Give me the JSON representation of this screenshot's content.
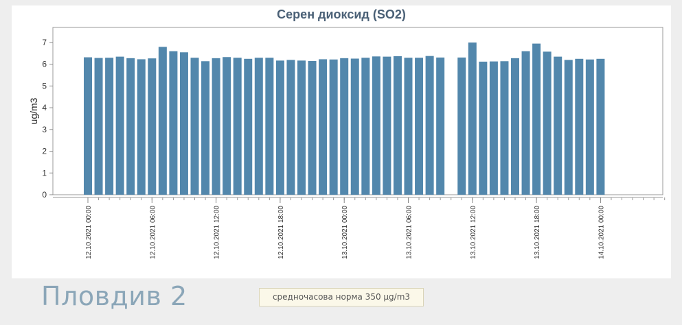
{
  "station": {
    "name": "Пловдив 2"
  },
  "norm": {
    "label": "средночасова норма 350 µg/m3"
  },
  "colors": {
    "bar": "#5287ac",
    "axis": "#888888",
    "title": "#4a6076"
  },
  "chart_data": {
    "type": "bar",
    "title": "Серен диоксид (SO2)",
    "xlabel": "",
    "ylabel": "ug/m3",
    "ylim": [
      0,
      7.5
    ],
    "yticks": [
      0,
      1,
      2,
      3,
      4,
      5,
      6,
      7
    ],
    "grid": false,
    "tick_labels": [
      "12.10.2021 00:00",
      "12.10.2021 06:00",
      "12.10.2021 12:00",
      "12.10.2021 18:00",
      "13.10.2021 00:00",
      "13.10.2021 06:00",
      "13.10.2021 12:00",
      "13.10.2021 18:00",
      "14.10.2021 00:00"
    ],
    "categories": [
      "12.10.2021 00:00",
      "12.10.2021 01:00",
      "12.10.2021 02:00",
      "12.10.2021 03:00",
      "12.10.2021 04:00",
      "12.10.2021 05:00",
      "12.10.2021 06:00",
      "12.10.2021 07:00",
      "12.10.2021 08:00",
      "12.10.2021 09:00",
      "12.10.2021 10:00",
      "12.10.2021 11:00",
      "12.10.2021 12:00",
      "12.10.2021 13:00",
      "12.10.2021 14:00",
      "12.10.2021 15:00",
      "12.10.2021 16:00",
      "12.10.2021 17:00",
      "12.10.2021 18:00",
      "12.10.2021 19:00",
      "12.10.2021 20:00",
      "12.10.2021 21:00",
      "12.10.2021 22:00",
      "12.10.2021 23:00",
      "13.10.2021 00:00",
      "13.10.2021 01:00",
      "13.10.2021 02:00",
      "13.10.2021 03:00",
      "13.10.2021 04:00",
      "13.10.2021 05:00",
      "13.10.2021 06:00",
      "13.10.2021 07:00",
      "13.10.2021 08:00",
      "13.10.2021 09:00",
      "13.10.2021 10:00",
      "13.10.2021 11:00",
      "13.10.2021 12:00",
      "13.10.2021 13:00",
      "13.10.2021 14:00",
      "13.10.2021 15:00",
      "13.10.2021 16:00",
      "13.10.2021 17:00",
      "13.10.2021 18:00",
      "13.10.2021 19:00",
      "13.10.2021 20:00",
      "13.10.2021 21:00",
      "13.10.2021 22:00",
      "13.10.2021 23:00",
      "14.10.2021 00:00",
      "14.10.2021 01:00",
      "14.10.2021 02:00",
      "14.10.2021 03:00",
      "14.10.2021 04:00",
      "14.10.2021 05:00",
      "14.10.2021 06:00"
    ],
    "values": [
      6.32,
      6.29,
      6.3,
      6.35,
      6.28,
      6.23,
      6.27,
      6.8,
      6.6,
      6.55,
      6.3,
      6.14,
      6.28,
      6.33,
      6.3,
      6.25,
      6.3,
      6.3,
      6.17,
      6.2,
      6.17,
      6.15,
      6.23,
      6.22,
      6.28,
      6.26,
      6.3,
      6.36,
      6.35,
      6.37,
      6.3,
      6.3,
      6.38,
      6.31,
      null,
      6.31,
      7.0,
      6.12,
      6.13,
      6.14,
      6.28,
      6.6,
      6.95,
      6.58,
      6.35,
      6.2,
      6.25,
      6.22,
      6.25,
      null,
      null,
      null,
      null,
      null,
      null
    ]
  }
}
